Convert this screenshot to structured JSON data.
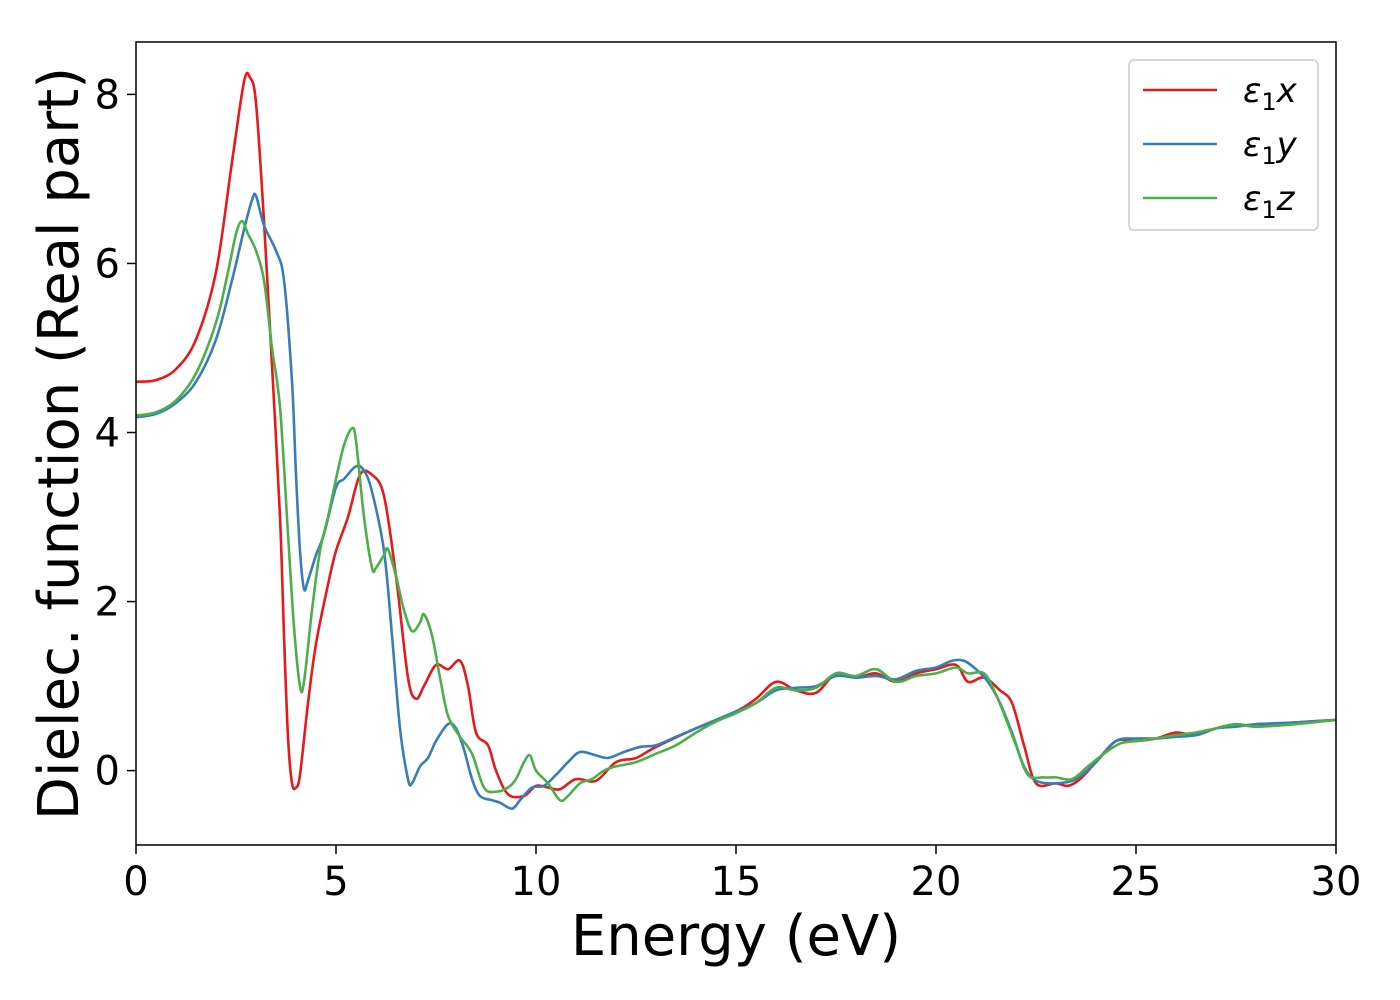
{
  "chart_data": {
    "type": "line",
    "title": "",
    "xlabel": "Energy (eV)",
    "ylabel": "Dielec. function (Real part)",
    "xlim": [
      0,
      30
    ],
    "ylim": [
      -0.88,
      8.62
    ],
    "xticks": [
      0,
      5,
      10,
      15,
      20,
      25,
      30
    ],
    "yticks": [
      0,
      2,
      4,
      6,
      8
    ],
    "grid": false,
    "legend_position": "top-right",
    "series": [
      {
        "name": "ε₁x",
        "legend_base": "ε",
        "legend_sub": "1",
        "legend_var": "x",
        "color": "#e41a1c",
        "points": [
          [
            0,
            4.6
          ],
          [
            0.5,
            4.62
          ],
          [
            1.0,
            4.75
          ],
          [
            1.5,
            5.1
          ],
          [
            2.0,
            5.9
          ],
          [
            2.4,
            7.2
          ],
          [
            2.7,
            8.15
          ],
          [
            2.85,
            8.2
          ],
          [
            3.0,
            7.9
          ],
          [
            3.2,
            6.5
          ],
          [
            3.4,
            4.8
          ],
          [
            3.6,
            3.0
          ],
          [
            3.7,
            1.6
          ],
          [
            3.8,
            0.4
          ],
          [
            3.9,
            -0.15
          ],
          [
            4.0,
            -0.2
          ],
          [
            4.1,
            -0.05
          ],
          [
            4.3,
            0.8
          ],
          [
            4.5,
            1.5
          ],
          [
            4.8,
            2.2
          ],
          [
            5.0,
            2.6
          ],
          [
            5.3,
            3.0
          ],
          [
            5.6,
            3.5
          ],
          [
            5.9,
            3.5
          ],
          [
            6.2,
            3.25
          ],
          [
            6.5,
            2.3
          ],
          [
            6.8,
            1.1
          ],
          [
            7.0,
            0.85
          ],
          [
            7.2,
            1.0
          ],
          [
            7.5,
            1.25
          ],
          [
            7.8,
            1.2
          ],
          [
            8.1,
            1.3
          ],
          [
            8.3,
            1.0
          ],
          [
            8.5,
            0.45
          ],
          [
            8.8,
            0.3
          ],
          [
            9.0,
            0.0
          ],
          [
            9.3,
            -0.28
          ],
          [
            9.7,
            -0.3
          ],
          [
            10.0,
            -0.18
          ],
          [
            10.3,
            -0.2
          ],
          [
            10.6,
            -0.22
          ],
          [
            11.0,
            -0.1
          ],
          [
            11.5,
            -0.12
          ],
          [
            12.0,
            0.1
          ],
          [
            12.5,
            0.15
          ],
          [
            13.0,
            0.28
          ],
          [
            14.0,
            0.5
          ],
          [
            15.0,
            0.7
          ],
          [
            15.5,
            0.85
          ],
          [
            16.0,
            1.05
          ],
          [
            16.5,
            0.95
          ],
          [
            17.0,
            0.92
          ],
          [
            17.5,
            1.15
          ],
          [
            18.0,
            1.1
          ],
          [
            18.5,
            1.15
          ],
          [
            19.0,
            1.05
          ],
          [
            19.5,
            1.15
          ],
          [
            20.0,
            1.2
          ],
          [
            20.5,
            1.25
          ],
          [
            20.8,
            1.05
          ],
          [
            21.2,
            1.1
          ],
          [
            21.6,
            0.95
          ],
          [
            21.9,
            0.8
          ],
          [
            22.2,
            0.3
          ],
          [
            22.5,
            -0.15
          ],
          [
            23.0,
            -0.15
          ],
          [
            23.3,
            -0.18
          ],
          [
            23.6,
            -0.1
          ],
          [
            24.0,
            0.1
          ],
          [
            24.5,
            0.35
          ],
          [
            25.0,
            0.35
          ],
          [
            25.5,
            0.38
          ],
          [
            26.0,
            0.45
          ],
          [
            26.5,
            0.42
          ],
          [
            27.0,
            0.5
          ],
          [
            27.5,
            0.55
          ],
          [
            28.0,
            0.52
          ],
          [
            28.5,
            0.55
          ],
          [
            29.0,
            0.57
          ],
          [
            30.0,
            0.6
          ]
        ]
      },
      {
        "name": "ε₁y",
        "legend_base": "ε",
        "legend_sub": "1",
        "legend_var": "y",
        "color": "#377eb8",
        "points": [
          [
            0,
            4.18
          ],
          [
            0.5,
            4.22
          ],
          [
            1.0,
            4.35
          ],
          [
            1.5,
            4.6
          ],
          [
            2.0,
            5.1
          ],
          [
            2.4,
            5.8
          ],
          [
            2.7,
            6.4
          ],
          [
            2.9,
            6.75
          ],
          [
            3.0,
            6.8
          ],
          [
            3.2,
            6.45
          ],
          [
            3.5,
            6.15
          ],
          [
            3.7,
            5.8
          ],
          [
            3.9,
            4.6
          ],
          [
            4.0,
            3.5
          ],
          [
            4.1,
            2.6
          ],
          [
            4.2,
            2.15
          ],
          [
            4.3,
            2.25
          ],
          [
            4.5,
            2.55
          ],
          [
            4.7,
            2.8
          ],
          [
            5.0,
            3.35
          ],
          [
            5.2,
            3.45
          ],
          [
            5.5,
            3.6
          ],
          [
            5.7,
            3.55
          ],
          [
            5.9,
            3.3
          ],
          [
            6.2,
            2.6
          ],
          [
            6.4,
            1.6
          ],
          [
            6.6,
            0.5
          ],
          [
            6.8,
            -0.1
          ],
          [
            6.9,
            -0.15
          ],
          [
            7.1,
            0.05
          ],
          [
            7.3,
            0.15
          ],
          [
            7.5,
            0.35
          ],
          [
            7.8,
            0.55
          ],
          [
            8.0,
            0.5
          ],
          [
            8.2,
            0.25
          ],
          [
            8.4,
            -0.1
          ],
          [
            8.6,
            -0.3
          ],
          [
            8.9,
            -0.35
          ],
          [
            9.1,
            -0.38
          ],
          [
            9.4,
            -0.45
          ],
          [
            9.6,
            -0.35
          ],
          [
            9.9,
            -0.2
          ],
          [
            10.2,
            -0.18
          ],
          [
            10.5,
            -0.05
          ],
          [
            10.8,
            0.1
          ],
          [
            11.1,
            0.22
          ],
          [
            11.5,
            0.18
          ],
          [
            11.8,
            0.15
          ],
          [
            12.2,
            0.22
          ],
          [
            12.6,
            0.28
          ],
          [
            13.0,
            0.3
          ],
          [
            13.5,
            0.4
          ],
          [
            14.0,
            0.5
          ],
          [
            14.5,
            0.6
          ],
          [
            15.0,
            0.7
          ],
          [
            15.5,
            0.8
          ],
          [
            16.0,
            0.95
          ],
          [
            16.5,
            0.98
          ],
          [
            17.0,
            1.0
          ],
          [
            17.5,
            1.12
          ],
          [
            18.0,
            1.1
          ],
          [
            18.5,
            1.12
          ],
          [
            19.0,
            1.08
          ],
          [
            19.5,
            1.18
          ],
          [
            20.0,
            1.22
          ],
          [
            20.4,
            1.3
          ],
          [
            20.7,
            1.3
          ],
          [
            21.0,
            1.2
          ],
          [
            21.3,
            1.05
          ],
          [
            21.6,
            0.8
          ],
          [
            21.9,
            0.45
          ],
          [
            22.2,
            0.05
          ],
          [
            22.5,
            -0.12
          ],
          [
            23.0,
            -0.15
          ],
          [
            23.5,
            -0.1
          ],
          [
            24.0,
            0.1
          ],
          [
            24.5,
            0.35
          ],
          [
            25.0,
            0.38
          ],
          [
            25.5,
            0.38
          ],
          [
            26.0,
            0.4
          ],
          [
            26.5,
            0.42
          ],
          [
            27.0,
            0.5
          ],
          [
            27.5,
            0.52
          ],
          [
            28.0,
            0.55
          ],
          [
            29.0,
            0.57
          ],
          [
            30.0,
            0.6
          ]
        ]
      },
      {
        "name": "ε₁z",
        "legend_base": "ε",
        "legend_sub": "1",
        "legend_var": "z",
        "color": "#4daf4a",
        "points": [
          [
            0,
            4.2
          ],
          [
            0.5,
            4.24
          ],
          [
            1.0,
            4.38
          ],
          [
            1.5,
            4.7
          ],
          [
            2.0,
            5.3
          ],
          [
            2.3,
            5.9
          ],
          [
            2.5,
            6.35
          ],
          [
            2.65,
            6.5
          ],
          [
            2.8,
            6.35
          ],
          [
            3.0,
            6.15
          ],
          [
            3.2,
            5.8
          ],
          [
            3.4,
            5.0
          ],
          [
            3.6,
            4.3
          ],
          [
            3.8,
            2.8
          ],
          [
            3.95,
            1.7
          ],
          [
            4.1,
            1.0
          ],
          [
            4.2,
            1.05
          ],
          [
            4.4,
            1.9
          ],
          [
            4.6,
            2.6
          ],
          [
            4.8,
            3.0
          ],
          [
            5.0,
            3.45
          ],
          [
            5.2,
            3.85
          ],
          [
            5.4,
            4.05
          ],
          [
            5.5,
            3.9
          ],
          [
            5.7,
            3.0
          ],
          [
            5.9,
            2.4
          ],
          [
            6.0,
            2.4
          ],
          [
            6.2,
            2.55
          ],
          [
            6.3,
            2.62
          ],
          [
            6.5,
            2.3
          ],
          [
            6.7,
            1.9
          ],
          [
            6.9,
            1.65
          ],
          [
            7.1,
            1.75
          ],
          [
            7.2,
            1.85
          ],
          [
            7.4,
            1.6
          ],
          [
            7.6,
            1.1
          ],
          [
            7.8,
            0.65
          ],
          [
            8.1,
            0.4
          ],
          [
            8.4,
            0.2
          ],
          [
            8.7,
            -0.2
          ],
          [
            9.0,
            -0.25
          ],
          [
            9.3,
            -0.2
          ],
          [
            9.5,
            -0.1
          ],
          [
            9.7,
            0.1
          ],
          [
            9.85,
            0.18
          ],
          [
            10.0,
            0.0
          ],
          [
            10.3,
            -0.15
          ],
          [
            10.6,
            -0.35
          ],
          [
            10.8,
            -0.3
          ],
          [
            11.1,
            -0.15
          ],
          [
            11.4,
            -0.1
          ],
          [
            11.7,
            0.0
          ],
          [
            12.0,
            0.05
          ],
          [
            12.5,
            0.1
          ],
          [
            13.0,
            0.2
          ],
          [
            13.5,
            0.3
          ],
          [
            14.0,
            0.45
          ],
          [
            14.5,
            0.58
          ],
          [
            15.0,
            0.68
          ],
          [
            15.5,
            0.8
          ],
          [
            16.0,
            0.98
          ],
          [
            16.5,
            0.95
          ],
          [
            17.0,
            0.98
          ],
          [
            17.5,
            1.15
          ],
          [
            18.0,
            1.12
          ],
          [
            18.5,
            1.2
          ],
          [
            19.0,
            1.05
          ],
          [
            19.5,
            1.12
          ],
          [
            20.0,
            1.15
          ],
          [
            20.5,
            1.22
          ],
          [
            20.8,
            1.15
          ],
          [
            21.2,
            1.15
          ],
          [
            21.5,
            0.9
          ],
          [
            21.8,
            0.55
          ],
          [
            22.0,
            0.3
          ],
          [
            22.3,
            -0.05
          ],
          [
            22.7,
            -0.08
          ],
          [
            23.0,
            -0.08
          ],
          [
            23.4,
            -0.1
          ],
          [
            23.8,
            0.05
          ],
          [
            24.2,
            0.2
          ],
          [
            24.6,
            0.32
          ],
          [
            25.0,
            0.35
          ],
          [
            25.5,
            0.38
          ],
          [
            26.0,
            0.42
          ],
          [
            26.5,
            0.45
          ],
          [
            27.0,
            0.5
          ],
          [
            27.5,
            0.55
          ],
          [
            28.0,
            0.52
          ],
          [
            29.0,
            0.55
          ],
          [
            30.0,
            0.6
          ]
        ]
      }
    ]
  }
}
